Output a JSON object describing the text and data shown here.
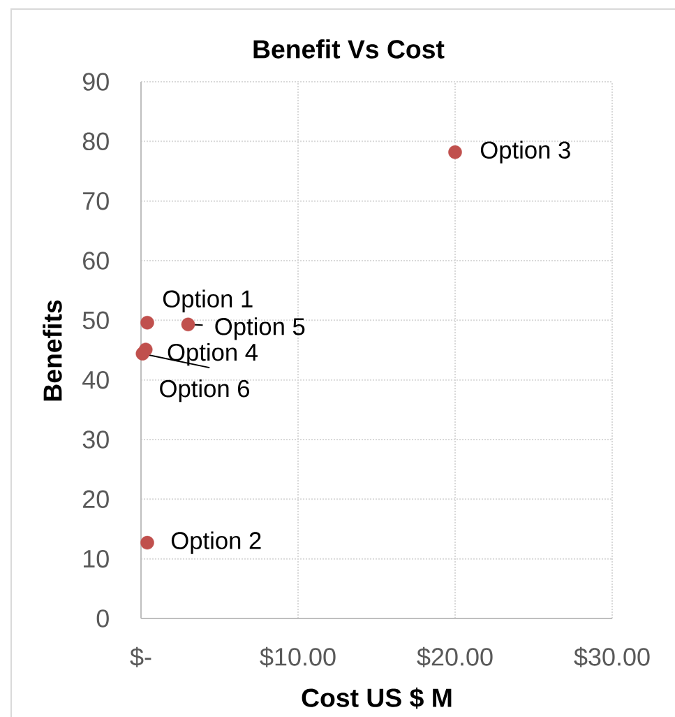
{
  "chart_data": {
    "type": "scatter",
    "title": "Benefit Vs Cost",
    "xlabel": "Cost US $ M",
    "ylabel": "Benefits",
    "x": [
      0.4,
      0.4,
      20.0,
      0.3,
      3.0,
      0.1
    ],
    "values": [
      49.6,
      12.7,
      78.2,
      45.1,
      49.3,
      44.4
    ],
    "color": "#c0504d",
    "marker": "circle",
    "xlim": [
      0,
      30
    ],
    "ylim": [
      0,
      90
    ],
    "xticks": [
      {
        "value": 0,
        "label": "$-"
      },
      {
        "value": 10,
        "label": "$10.00"
      },
      {
        "value": 20,
        "label": "$20.00"
      },
      {
        "value": 30,
        "label": "$30.00"
      }
    ],
    "yticks": [
      0,
      10,
      20,
      30,
      40,
      50,
      60,
      70,
      80,
      90
    ],
    "grid": true,
    "annotations": [
      {
        "text": "Option 1",
        "x": 0.4,
        "y": 49.6
      },
      {
        "text": "Option 2",
        "x": 0.4,
        "y": 12.7
      },
      {
        "text": "Option 3",
        "x": 20.0,
        "y": 78.2
      },
      {
        "text": "Option 4",
        "x": 0.3,
        "y": 45.1
      },
      {
        "text": "Option 5",
        "x": 3.0,
        "y": 49.3
      },
      {
        "text": "Option 6",
        "x": 0.1,
        "y": 44.4
      }
    ]
  }
}
